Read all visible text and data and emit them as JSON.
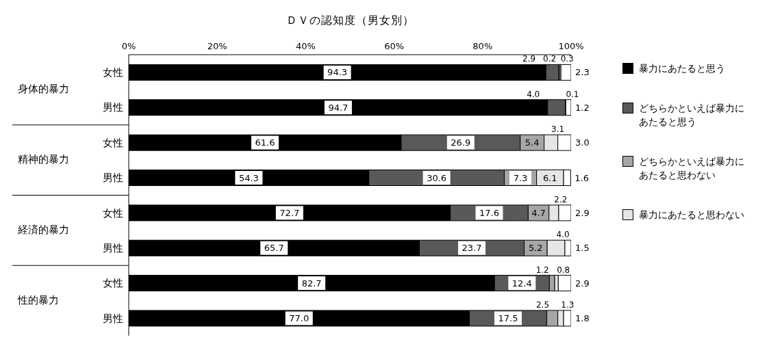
{
  "chart_data": {
    "type": "bar",
    "orientation": "horizontal",
    "stacked": true,
    "title": "ＤＶの認知度（男女別）",
    "categories": [
      "女性",
      "男性",
      "女性",
      "男性",
      "女性",
      "男性",
      "女性",
      "男性"
    ],
    "annotations": [
      "身体的暴力",
      "精神的暴力",
      "経済的暴力",
      "性的暴力"
    ],
    "series": [
      {
        "name": "暴力にあたると思う",
        "color": "#000000",
        "values": [
          94.3,
          94.7,
          61.6,
          54.3,
          72.7,
          65.7,
          82.7,
          77.0
        ],
        "value_labels": [
          "94.3",
          "94.7",
          "61.6",
          "54.3",
          "72.7",
          "65.7",
          "82.7",
          "77.0"
        ]
      },
      {
        "name": "どちらかといえば暴力にあたると思う",
        "color": "#595959",
        "values": [
          2.9,
          4.0,
          26.9,
          30.6,
          17.6,
          23.7,
          12.4,
          17.5
        ],
        "value_labels": [
          "2.9",
          "4.0",
          "26.9",
          "30.6",
          "17.6",
          "23.7",
          "12.4",
          "17.5"
        ]
      },
      {
        "name": "どちらかといえば暴力にあたると思わない",
        "color": "#a6a6a6",
        "values": [
          0.2,
          null,
          5.4,
          7.3,
          4.7,
          5.2,
          1.2,
          2.5
        ],
        "value_labels": [
          "0.2",
          null,
          "5.4",
          "7.3",
          "4.7",
          "5.2",
          "1.2",
          "2.5"
        ]
      },
      {
        "name": "暴力にあたると思わない",
        "color": "#e6e6e6",
        "values": [
          0.3,
          0.1,
          3.1,
          6.1,
          2.2,
          4.0,
          0.8,
          1.3
        ],
        "value_labels": [
          "0.3",
          "0.1",
          "3.1",
          "6.1",
          "2.2",
          "4.0",
          "0.8",
          "1.3"
        ]
      },
      {
        "color": "#ffffff",
        "values": [
          2.3,
          1.2,
          3.0,
          1.6,
          2.9,
          1.5,
          2.9,
          1.8
        ],
        "value_labels": [
          "2.3",
          "1.2",
          "3.0",
          "1.6",
          "2.9",
          "1.5",
          "2.9",
          "1.8"
        ]
      }
    ],
    "xlim": [
      0,
      100
    ],
    "xticks": [
      {
        "value": 0,
        "label": "0%"
      },
      {
        "value": 20,
        "label": "20%"
      },
      {
        "value": 40,
        "label": "40%"
      },
      {
        "value": 60,
        "label": "60%"
      },
      {
        "value": 80,
        "label": "80%"
      },
      {
        "value": 100,
        "label": "100%"
      }
    ],
    "legend": "right"
  }
}
